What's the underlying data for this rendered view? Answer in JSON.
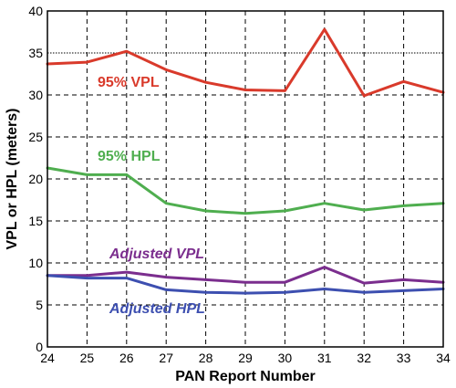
{
  "chart_data": {
    "type": "line",
    "xlabel": "PAN Report Number",
    "ylabel": "VPL or HPL (meters)",
    "x": [
      24,
      25,
      26,
      27,
      28,
      29,
      30,
      31,
      32,
      33,
      34
    ],
    "xlim": [
      24,
      34
    ],
    "ylim": [
      0,
      40
    ],
    "xticks": [
      "24",
      "25",
      "26",
      "27",
      "28",
      "29",
      "30",
      "31",
      "32",
      "33",
      "34"
    ],
    "yticks": [
      "0",
      "5",
      "10",
      "15",
      "20",
      "25",
      "30",
      "35",
      "40"
    ],
    "grid": true,
    "reference_line": {
      "y": 35,
      "style": "dotted"
    },
    "series": [
      {
        "name": "95% VPL",
        "color": "#d93a2b",
        "values": [
          33.7,
          33.9,
          35.2,
          33.0,
          31.5,
          30.6,
          30.5,
          37.8,
          29.9,
          31.6,
          30.3
        ]
      },
      {
        "name": "95% HPL",
        "color": "#4fae4f",
        "values": [
          21.3,
          20.5,
          20.5,
          17.1,
          16.2,
          15.9,
          16.2,
          17.1,
          16.3,
          16.8,
          17.1
        ]
      },
      {
        "name": "Adjusted VPL",
        "color": "#7b2e8e",
        "values": [
          8.5,
          8.5,
          8.9,
          8.3,
          8.0,
          7.7,
          7.7,
          9.5,
          7.6,
          8.0,
          7.7
        ]
      },
      {
        "name": "Adjusted HPL",
        "color": "#3d4fb0",
        "values": [
          8.5,
          8.2,
          8.2,
          6.8,
          6.5,
          6.4,
          6.5,
          6.9,
          6.5,
          6.7,
          6.9
        ]
      }
    ]
  }
}
